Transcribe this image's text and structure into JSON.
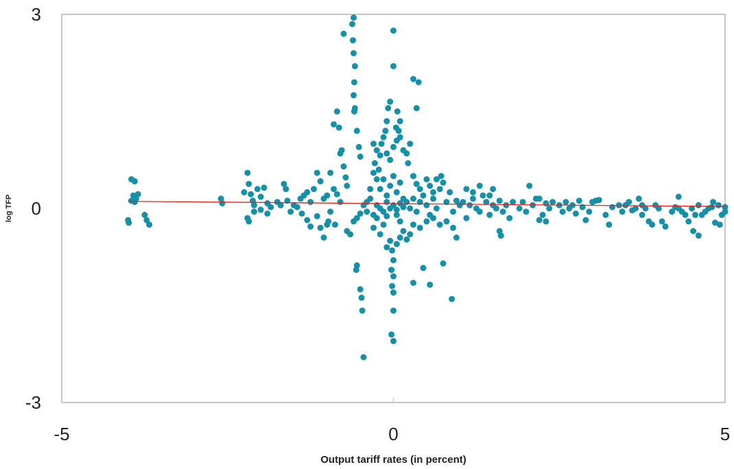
{
  "chart_data": {
    "type": "scatter",
    "title": "",
    "xlabel": "Output tariff rates (in percent)",
    "ylabel": "log TFP",
    "xlim": [
      -5,
      5
    ],
    "ylim": [
      -3,
      3
    ],
    "x_ticks": [
      "-5",
      "0",
      "5"
    ],
    "y_ticks": [
      "3",
      "0",
      "-3"
    ],
    "grid": false,
    "legend": "none",
    "colors": {
      "points": "#1590a8",
      "trend": "#e3201b",
      "frame": "#8c8c8c"
    },
    "trend_line": {
      "x": [
        -4.0,
        5.0
      ],
      "y": [
        0.11,
        0.03
      ]
    },
    "series": [
      {
        "values": [
          [
            -3.95,
            0.45
          ],
          [
            -3.9,
            0.42
          ],
          [
            -3.92,
            0.2
          ],
          [
            -3.88,
            0.15
          ],
          [
            -3.85,
            0.22
          ],
          [
            -3.9,
            0.1
          ],
          [
            -3.95,
            0.12
          ],
          [
            -4.0,
            -0.18
          ],
          [
            -3.99,
            -0.22
          ],
          [
            -3.75,
            -0.1
          ],
          [
            -3.72,
            -0.18
          ],
          [
            -3.68,
            -0.25
          ],
          [
            -2.6,
            0.15
          ],
          [
            -2.58,
            0.08
          ],
          [
            -2.2,
            0.55
          ],
          [
            -2.18,
            0.38
          ],
          [
            -2.15,
            0.22
          ],
          [
            -2.12,
            0.12
          ],
          [
            -2.1,
            0.05
          ],
          [
            -2.05,
            0.3
          ],
          [
            -2.0,
            0.18
          ],
          [
            -1.95,
            0.32
          ],
          [
            -2.25,
            0.25
          ],
          [
            -2.2,
            -0.15
          ],
          [
            -2.18,
            -0.2
          ],
          [
            -2.1,
            -0.05
          ],
          [
            -2.0,
            -0.02
          ],
          [
            -1.9,
            0.08
          ],
          [
            -1.85,
            0.02
          ],
          [
            -1.9,
            -0.08
          ],
          [
            -1.75,
            0.1
          ],
          [
            -1.7,
            0.05
          ],
          [
            -1.65,
            0.38
          ],
          [
            -1.62,
            0.3
          ],
          [
            -1.6,
            0.12
          ],
          [
            -1.55,
            -0.05
          ],
          [
            -1.5,
            0.05
          ],
          [
            -1.45,
            0.02
          ],
          [
            -1.4,
            0.15
          ],
          [
            -1.38,
            -0.08
          ],
          [
            -1.35,
            0.2
          ],
          [
            -1.3,
            0.25
          ],
          [
            -1.25,
            0.1
          ],
          [
            -1.2,
            0.3
          ],
          [
            -1.15,
            0.55
          ],
          [
            -1.1,
            0.42
          ],
          [
            -1.05,
            0.15
          ],
          [
            -1.0,
            0.2
          ],
          [
            -0.98,
            -0.2
          ],
          [
            -0.95,
            0.55
          ],
          [
            -0.9,
            0.3
          ],
          [
            -0.88,
            -0.25
          ],
          [
            -0.85,
            0.22
          ],
          [
            -0.8,
            0.1
          ],
          [
            -1.3,
            -0.18
          ],
          [
            -1.25,
            -0.28
          ],
          [
            -1.15,
            -0.12
          ],
          [
            -1.1,
            -0.3
          ],
          [
            -1.05,
            -0.45
          ],
          [
            -1.0,
            -0.25
          ],
          [
            -0.95,
            -0.05
          ],
          [
            -0.9,
            1.3
          ],
          [
            -0.85,
            1.5
          ],
          [
            -0.82,
            1.25
          ],
          [
            -0.8,
            0.85
          ],
          [
            -0.78,
            0.9
          ],
          [
            -0.75,
            0.65
          ],
          [
            -0.72,
            0.48
          ],
          [
            -0.7,
            0.35
          ],
          [
            -0.75,
            2.7
          ],
          [
            -0.6,
            2.95
          ],
          [
            -0.62,
            2.85
          ],
          [
            -0.61,
            2.6
          ],
          [
            -0.6,
            2.4
          ],
          [
            -0.58,
            2.2
          ],
          [
            -0.59,
            1.95
          ],
          [
            -0.6,
            1.75
          ],
          [
            -0.58,
            1.55
          ],
          [
            -0.59,
            1.5
          ],
          [
            -0.55,
            1.2
          ],
          [
            -0.52,
            0.95
          ],
          [
            -0.5,
            0.8
          ],
          [
            -0.55,
            -0.88
          ],
          [
            -0.56,
            -0.95
          ],
          [
            -0.5,
            -1.25
          ],
          [
            -0.48,
            -1.38
          ],
          [
            -0.47,
            -1.58
          ],
          [
            -0.45,
            -2.3
          ],
          [
            -0.7,
            -0.35
          ],
          [
            -0.65,
            -0.4
          ],
          [
            -0.6,
            -0.2
          ],
          [
            -0.55,
            -0.15
          ],
          [
            -0.5,
            -0.08
          ],
          [
            -0.4,
            0.1
          ],
          [
            -0.35,
            0.3
          ],
          [
            -0.3,
            0.55
          ],
          [
            -0.28,
            0.7
          ],
          [
            -0.25,
            0.45
          ],
          [
            -0.2,
            0.82
          ],
          [
            -0.18,
            1.0
          ],
          [
            -0.15,
            1.1
          ],
          [
            -0.12,
            1.2
          ],
          [
            -0.1,
            1.35
          ],
          [
            -0.08,
            1.55
          ],
          [
            -0.05,
            1.65
          ],
          [
            -0.3,
            1.0
          ],
          [
            -0.25,
            0.9
          ],
          [
            -0.22,
            0.6
          ],
          [
            -0.1,
            0.85
          ],
          [
            -0.05,
            0.75
          ],
          [
            0.0,
            0.95
          ],
          [
            0.05,
            1.05
          ],
          [
            0.08,
            1.2
          ],
          [
            0.1,
            1.35
          ],
          [
            0.06,
            1.5
          ],
          [
            0.04,
            1.25
          ],
          [
            0.1,
            1.1
          ],
          [
            0.15,
            0.9
          ],
          [
            0.2,
            0.85
          ],
          [
            0.22,
            0.7
          ],
          [
            0.25,
            1.0
          ],
          [
            0.0,
            2.75
          ],
          [
            0.0,
            2.2
          ],
          [
            0.3,
            2.0
          ],
          [
            0.38,
            1.95
          ],
          [
            0.35,
            1.55
          ],
          [
            -0.05,
            -0.5
          ],
          [
            -0.02,
            -0.65
          ],
          [
            0.0,
            -0.8
          ],
          [
            -0.03,
            -0.95
          ],
          [
            0.0,
            -1.05
          ],
          [
            -0.02,
            -1.2
          ],
          [
            0.0,
            -1.3
          ],
          [
            0.0,
            -1.58
          ],
          [
            -0.03,
            -1.95
          ],
          [
            0.0,
            -2.05
          ],
          [
            -0.1,
            -0.6
          ],
          [
            0.05,
            -0.55
          ],
          [
            0.1,
            -0.45
          ],
          [
            0.15,
            -0.35
          ],
          [
            0.2,
            -0.48
          ],
          [
            0.25,
            -0.4
          ],
          [
            0.3,
            -1.15
          ],
          [
            0.45,
            -0.92
          ],
          [
            0.55,
            -1.18
          ],
          [
            0.75,
            -0.85
          ],
          [
            0.88,
            -1.4
          ],
          [
            -0.3,
            -0.3
          ],
          [
            -0.25,
            -0.15
          ],
          [
            -0.2,
            -0.4
          ],
          [
            -0.15,
            -0.25
          ],
          [
            -0.1,
            -0.12
          ],
          [
            0.05,
            -0.1
          ],
          [
            0.1,
            -0.2
          ],
          [
            -0.2,
            0.3
          ],
          [
            -0.15,
            0.45
          ],
          [
            -0.1,
            0.2
          ],
          [
            -0.05,
            0.35
          ],
          [
            0.0,
            0.5
          ],
          [
            0.05,
            0.25
          ],
          [
            0.1,
            0.4
          ],
          [
            0.15,
            0.15
          ],
          [
            -0.45,
            0.05
          ],
          [
            -0.4,
            -0.05
          ],
          [
            -0.35,
            0.15
          ],
          [
            -0.3,
            -0.1
          ],
          [
            -0.25,
            0.05
          ],
          [
            -0.2,
            0.0
          ],
          [
            -0.15,
            -0.05
          ],
          [
            -0.1,
            0.1
          ],
          [
            -0.05,
            0.0
          ],
          [
            0.0,
            0.05
          ],
          [
            0.05,
            -0.02
          ],
          [
            0.1,
            0.08
          ],
          [
            0.15,
            0.02
          ],
          [
            0.2,
            0.1
          ],
          [
            0.25,
            0.0
          ],
          [
            0.3,
            0.15
          ],
          [
            0.35,
            -0.05
          ],
          [
            0.4,
            0.1
          ],
          [
            0.45,
            0.2
          ],
          [
            0.5,
            0.05
          ],
          [
            0.55,
            -0.1
          ],
          [
            0.6,
            0.15
          ],
          [
            0.65,
            0.0
          ],
          [
            0.7,
            0.3
          ],
          [
            0.72,
            0.5
          ],
          [
            0.75,
            0.4
          ],
          [
            0.8,
            0.1
          ],
          [
            0.85,
            0.25
          ],
          [
            0.9,
            -0.05
          ],
          [
            0.95,
            0.12
          ],
          [
            1.0,
            0.05
          ],
          [
            0.3,
            0.5
          ],
          [
            0.35,
            0.38
          ],
          [
            0.4,
            0.3
          ],
          [
            0.5,
            0.45
          ],
          [
            0.55,
            0.35
          ],
          [
            0.6,
            0.25
          ],
          [
            0.65,
            0.45
          ],
          [
            0.3,
            -0.25
          ],
          [
            0.4,
            -0.3
          ],
          [
            0.5,
            -0.2
          ],
          [
            0.6,
            -0.15
          ],
          [
            0.7,
            -0.25
          ],
          [
            0.8,
            -0.2
          ],
          [
            0.9,
            -0.3
          ],
          [
            0.95,
            -0.45
          ],
          [
            1.05,
            0.1
          ],
          [
            1.1,
            -0.15
          ],
          [
            1.15,
            0.05
          ],
          [
            1.2,
            0.15
          ],
          [
            1.25,
            0.0
          ],
          [
            1.3,
            -0.05
          ],
          [
            1.35,
            0.2
          ],
          [
            1.4,
            0.1
          ],
          [
            1.45,
            -0.1
          ],
          [
            1.5,
            0.05
          ],
          [
            1.55,
            0.0
          ],
          [
            1.6,
            0.12
          ],
          [
            1.65,
            -0.05
          ],
          [
            1.7,
            0.05
          ],
          [
            1.75,
            -0.15
          ],
          [
            1.8,
            0.1
          ],
          [
            1.1,
            0.3
          ],
          [
            1.2,
            0.25
          ],
          [
            1.3,
            0.35
          ],
          [
            1.45,
            0.2
          ],
          [
            1.5,
            0.3
          ],
          [
            1.6,
            -0.35
          ],
          [
            1.62,
            -0.42
          ],
          [
            1.9,
            0.0
          ],
          [
            1.95,
            0.1
          ],
          [
            2.0,
            -0.05
          ],
          [
            2.1,
            0.05
          ],
          [
            2.2,
            0.15
          ],
          [
            2.25,
            -0.1
          ],
          [
            2.3,
            0.08
          ],
          [
            2.35,
            0.0
          ],
          [
            2.05,
            0.35
          ],
          [
            2.15,
            0.15
          ],
          [
            2.2,
            -0.18
          ],
          [
            2.3,
            -0.2
          ],
          [
            2.4,
            0.1
          ],
          [
            2.5,
            0.05
          ],
          [
            2.55,
            -0.05
          ],
          [
            2.6,
            0.1
          ],
          [
            2.65,
            0.0
          ],
          [
            2.7,
            0.05
          ],
          [
            2.75,
            -0.08
          ],
          [
            2.8,
            0.12
          ],
          [
            2.85,
            0.02
          ],
          [
            2.9,
            -0.18
          ],
          [
            2.95,
            -0.05
          ],
          [
            3.0,
            0.1
          ],
          [
            3.05,
            0.12
          ],
          [
            3.1,
            0.13
          ],
          [
            3.2,
            -0.1
          ],
          [
            3.25,
            -0.25
          ],
          [
            3.3,
            0.02
          ],
          [
            3.4,
            0.05
          ],
          [
            3.45,
            -0.05
          ],
          [
            3.5,
            0.05
          ],
          [
            3.55,
            0.1
          ],
          [
            3.6,
            -0.03
          ],
          [
            3.65,
            0.0
          ],
          [
            3.7,
            0.15
          ],
          [
            3.75,
            -0.1
          ],
          [
            3.8,
            0.0
          ],
          [
            3.85,
            -0.2
          ],
          [
            3.9,
            -0.25
          ],
          [
            3.95,
            0.05
          ],
          [
            4.0,
            0.0
          ],
          [
            4.05,
            -0.2
          ],
          [
            4.1,
            -0.28
          ],
          [
            4.2,
            -0.05
          ],
          [
            4.25,
            0.02
          ],
          [
            4.3,
            0.0
          ],
          [
            4.35,
            -0.05
          ],
          [
            4.4,
            -0.1
          ],
          [
            4.45,
            -0.2
          ],
          [
            4.5,
            0.0
          ],
          [
            4.52,
            -0.35
          ],
          [
            4.55,
            -0.1
          ],
          [
            4.6,
            0.05
          ],
          [
            4.65,
            -0.1
          ],
          [
            4.7,
            -0.05
          ],
          [
            4.75,
            0.0
          ],
          [
            4.8,
            0.02
          ],
          [
            4.82,
            0.1
          ],
          [
            4.85,
            -0.22
          ],
          [
            4.9,
            0.05
          ],
          [
            4.92,
            -0.25
          ],
          [
            4.95,
            -0.1
          ],
          [
            5.0,
            0.02
          ],
          [
            5.0,
            -0.05
          ],
          [
            4.3,
            0.18
          ],
          [
            3.75,
            0.05
          ],
          [
            4.6,
            -0.42
          ]
        ]
      }
    ]
  }
}
